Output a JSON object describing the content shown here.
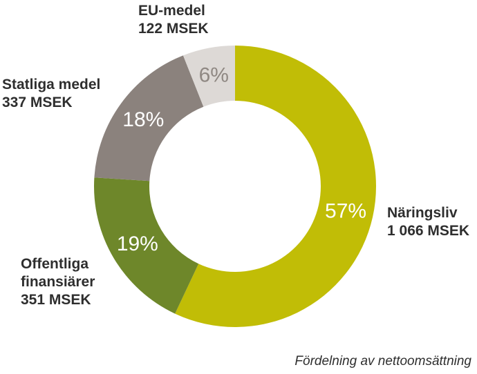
{
  "chart_data": {
    "type": "pie",
    "variant": "donut",
    "start_angle_deg": 0,
    "direction": "clockwise",
    "slices": [
      {
        "name": "Näringsliv",
        "amount": "1 066 MSEK",
        "value": 57,
        "percent_label": "57%",
        "color": "#c1bd06",
        "pct_text_color": "#ffffff"
      },
      {
        "name": "Offentliga finansiärer",
        "name_lines": [
          "Offentliga",
          "finansiärer"
        ],
        "amount": "351 MSEK",
        "value": 19,
        "percent_label": "19%",
        "color": "#6e872a",
        "pct_text_color": "#ffffff"
      },
      {
        "name": "Statliga medel",
        "amount": "337 MSEK",
        "value": 18,
        "percent_label": "18%",
        "color": "#8b827d",
        "pct_text_color": "#ffffff"
      },
      {
        "name": "EU-medel",
        "amount": "122 MSEK",
        "value": 6,
        "percent_label": "6%",
        "color": "#ddd9d6",
        "pct_text_color": "#8f8883"
      }
    ],
    "caption": "Fördelning av nettoomsättning"
  }
}
